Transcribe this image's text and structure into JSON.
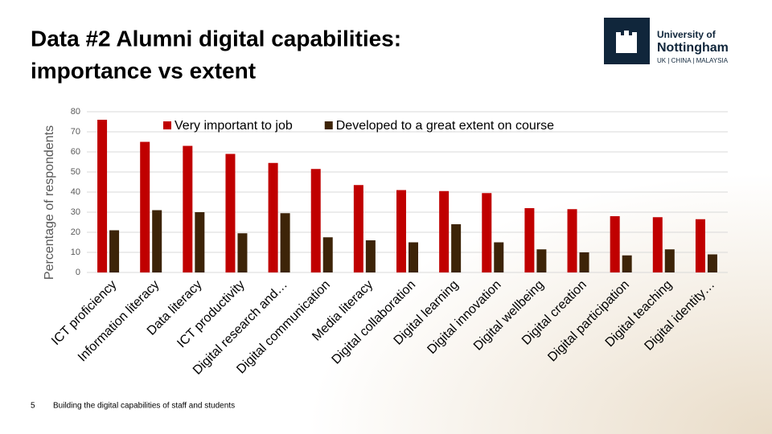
{
  "slide": {
    "title_lines": [
      "Data #2 Alumni digital capabilities:",
      "importance vs extent"
    ],
    "logo": {
      "line1": "University of",
      "line2": "Nottingham",
      "line3": "UK | CHINA | MALAYSIA"
    },
    "footer": {
      "page": "5",
      "text": "Building the digital capabilities of staff and students"
    }
  },
  "chart_data": {
    "type": "bar",
    "y_label": "Percentage of respondents",
    "categories": [
      "ICT proficiency",
      "Information literacy",
      "Data literacy",
      "ICT productivity",
      "Digital research and…",
      "Digital communication",
      "Media literacy",
      "Digital collaboration",
      "Digital learning",
      "Digital innovation",
      "Digital wellbeing",
      "Digital creation",
      "Digital participation",
      "Digital teaching",
      "Digital identity…"
    ],
    "series": [
      {
        "name": "Very important to job",
        "color": "#c00000",
        "values": [
          76,
          65,
          63,
          59,
          54.5,
          51.5,
          43.5,
          41,
          40.5,
          39.5,
          32,
          31.5,
          28,
          27.5,
          26.5
        ]
      },
      {
        "name": "Developed to a great extent on course",
        "color": "#3d2408",
        "values": [
          21,
          31,
          30,
          19.5,
          29.5,
          17.5,
          16,
          15,
          24,
          15,
          11.5,
          10,
          8.5,
          11.5,
          9
        ]
      }
    ],
    "ylim": [
      0,
      80
    ],
    "yticks": [
      0,
      10,
      20,
      30,
      40,
      50,
      60,
      70,
      80
    ],
    "grid": true,
    "legend": "top"
  }
}
